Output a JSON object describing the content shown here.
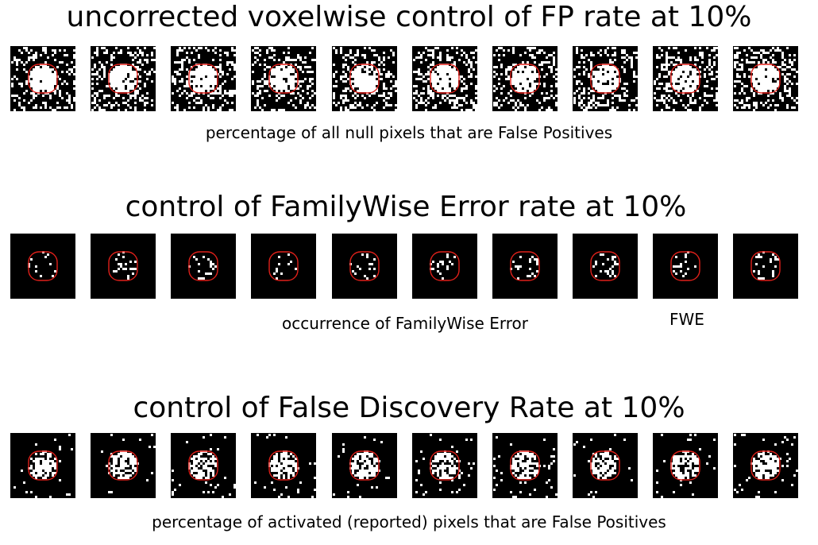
{
  "sections": [
    {
      "id": "uncorrected",
      "title": "uncorrected voxelwise control of FP rate at 10%",
      "caption": "percentage of all null pixels that are False Positives",
      "noise_density": 0.26,
      "signal_density": 0.88
    },
    {
      "id": "fwe",
      "title": "control of FamilyWise Error rate at 10%",
      "caption": "occurrence of FamilyWise Error",
      "extra_label": "FWE",
      "noise_density": 0.0,
      "signal_density": 0.16
    },
    {
      "id": "fdr",
      "title": "control of False Discovery Rate at 10%",
      "caption": "percentage of activated (reported) pixels that are False Positives",
      "noise_density": 0.035,
      "signal_density": 0.68
    }
  ],
  "panel_count": 10,
  "colors": {
    "background": "#000000",
    "pixels": "#ffffff",
    "roi_outline": "#e0201a"
  }
}
